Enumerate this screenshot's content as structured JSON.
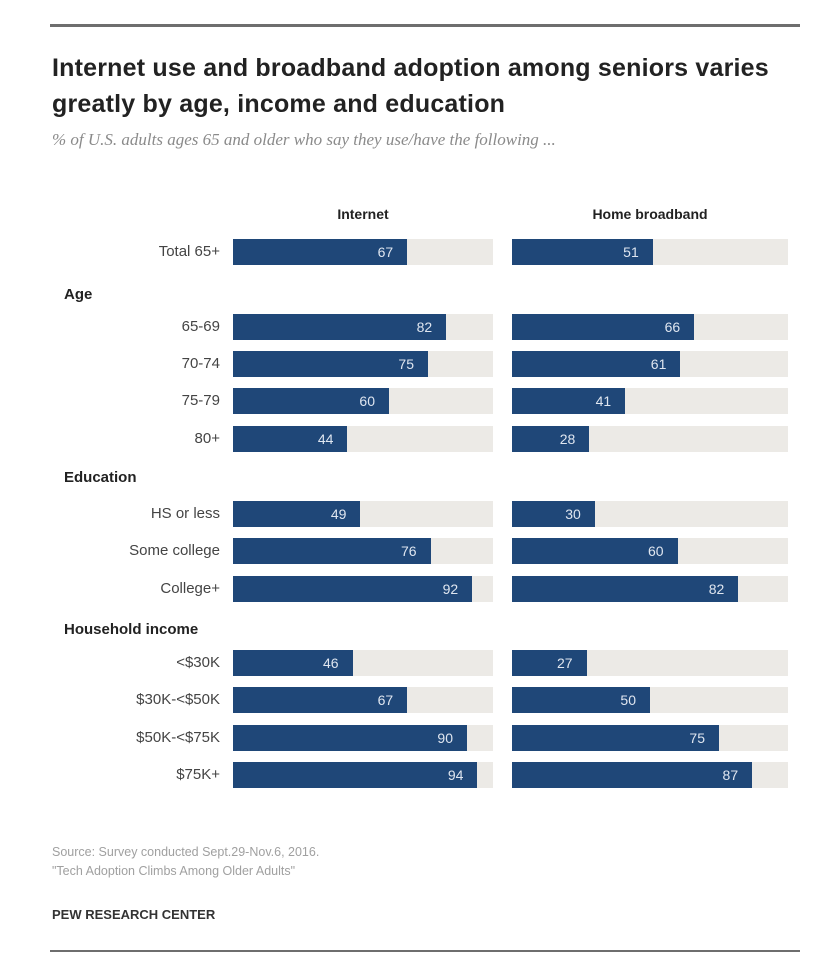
{
  "chart_data": {
    "type": "bar",
    "orientation": "horizontal",
    "title": "Internet use and broadband adoption among seniors varies greatly by age, income and education",
    "subtitle": "% of U.S. adults ages 65 and older who say they use/have the following ...",
    "xlim": [
      0,
      100
    ],
    "grid": false,
    "series": [
      {
        "name": "Internet",
        "values": [
          67,
          82,
          75,
          60,
          44,
          49,
          76,
          92,
          46,
          67,
          90,
          94
        ]
      },
      {
        "name": "Home broadband",
        "values": [
          51,
          66,
          61,
          41,
          28,
          30,
          60,
          82,
          27,
          50,
          75,
          87
        ]
      }
    ],
    "categories": [
      "Total 65+",
      "65-69",
      "70-74",
      "75-79",
      "80+",
      "HS or less",
      "Some college",
      "College+",
      "<$30K",
      "$30K-<$50K",
      "$50K-<$75K",
      "$75K+"
    ],
    "groups": [
      {
        "label": "",
        "categories": [
          "Total 65+"
        ]
      },
      {
        "label": "Age",
        "categories": [
          "65-69",
          "70-74",
          "75-79",
          "80+"
        ]
      },
      {
        "label": "Education",
        "categories": [
          "HS or less",
          "Some college",
          "College+"
        ]
      },
      {
        "label": "Household income",
        "categories": [
          "<$30K",
          "$30K-<$50K",
          "$50K-<$75K",
          "$75K+"
        ]
      }
    ],
    "colors": {
      "bar": "#1f4778",
      "track": "#eceae6"
    }
  },
  "footer": {
    "source": "Source: Survey conducted Sept.29-Nov.6, 2016.",
    "report": "\"Tech Adoption Climbs Among Older Adults\"",
    "org": "PEW RESEARCH CENTER"
  }
}
